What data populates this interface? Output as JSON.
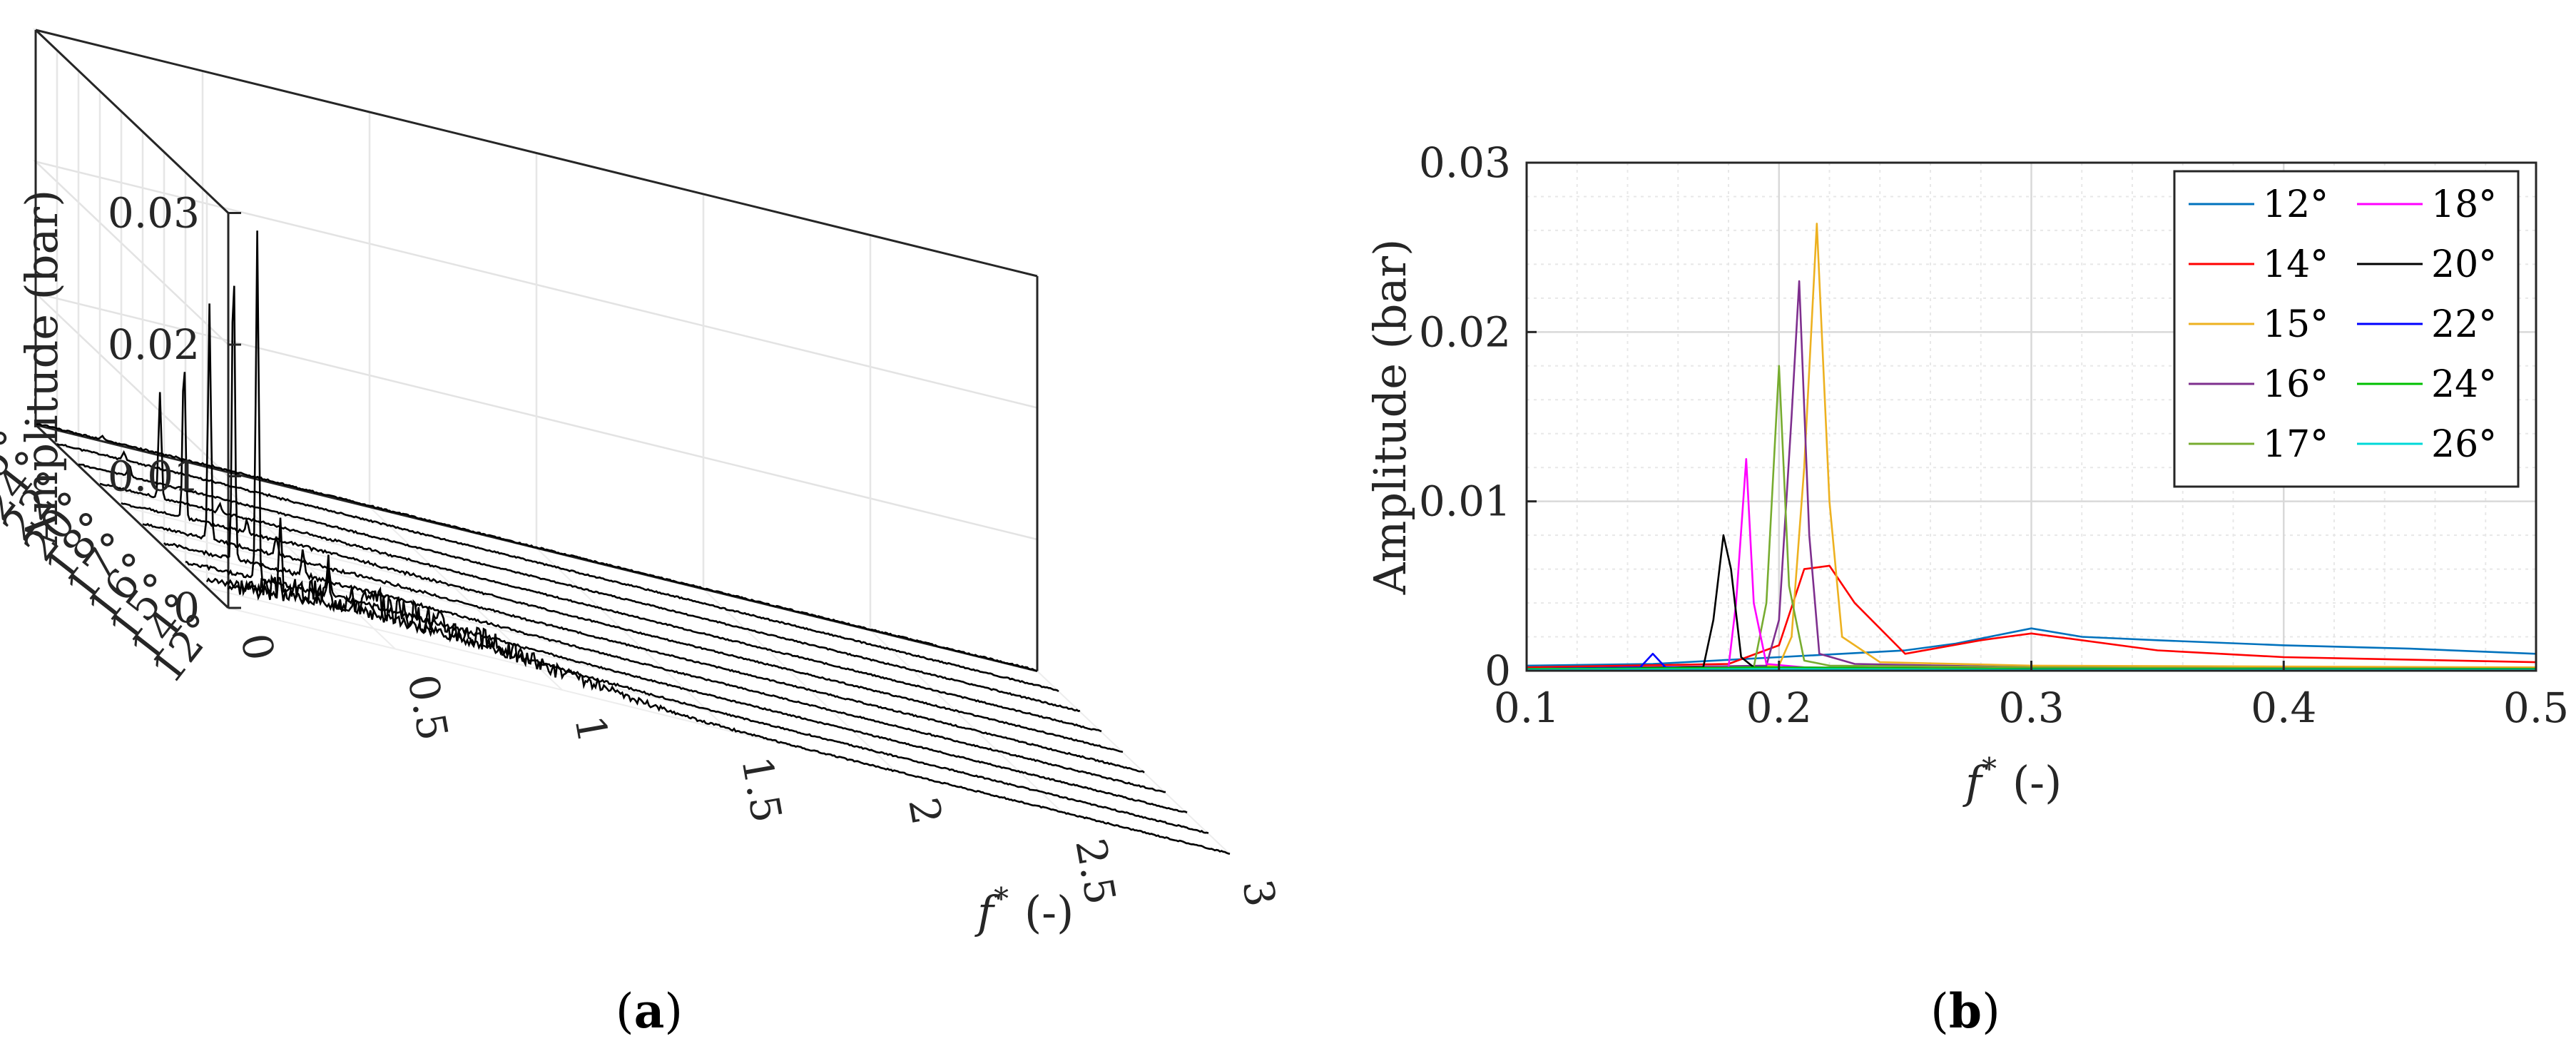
{
  "chart_data": [
    {
      "panel": "(a)",
      "type": "line",
      "projection": "3d-waterfall",
      "ylabel_text": "Amplitude (bar)",
      "xlabel_f": "f",
      "xlabel_sup": "*",
      "xlabel_unit": "(-)",
      "z_ticks": [
        "0",
        "0.01",
        "0.02",
        "0.03"
      ],
      "x_ticks": [
        "0",
        "0.5",
        "1",
        "1.5",
        "2",
        "2.5",
        "3"
      ],
      "angle_ticks": [
        "12°",
        "14°",
        "15°",
        "16°",
        "17°",
        "18°",
        "20°",
        "22°",
        "24°",
        "26°"
      ],
      "x_range": [
        0,
        3
      ],
      "z_range": [
        0,
        0.03
      ],
      "grid": true,
      "line_color": "#000000",
      "series": [
        {
          "angle": "12°",
          "peak_x": 0.3,
          "peak_amp": 0.0025,
          "broadband": 0.003
        },
        {
          "angle": "14°",
          "peak_x": 0.22,
          "peak_amp": 0.006,
          "broadband": 0.001
        },
        {
          "angle": "15°",
          "peak_x": 0.215,
          "peak_amp": 0.0264,
          "broadband": 0.0005
        },
        {
          "angle": "16°",
          "peak_x": 0.208,
          "peak_amp": 0.023,
          "broadband": 0.0004
        },
        {
          "angle": "17°",
          "peak_x": 0.2,
          "peak_amp": 0.018,
          "broadband": 0.0003
        },
        {
          "angle": "18°",
          "peak_x": 0.188,
          "peak_amp": 0.0125,
          "broadband": 0.0003
        },
        {
          "angle": "20°",
          "peak_x": 0.18,
          "peak_amp": 0.008,
          "broadband": 0.0002
        },
        {
          "angle": "22°",
          "peak_x": 0.152,
          "peak_amp": 0.001,
          "broadband": 0.0001
        },
        {
          "angle": "24°",
          "peak_x": 0.2,
          "peak_amp": 0.0006,
          "broadband": 0.0001
        },
        {
          "angle": "26°",
          "peak_x": 0.2,
          "peak_amp": 0.0003,
          "broadband": 0.0001
        }
      ]
    },
    {
      "panel": "(b)",
      "type": "line",
      "ylabel_text": "Amplitude (bar)",
      "xlabel_f": "f",
      "xlabel_sup": "*",
      "xlabel_unit": "(-)",
      "xlim": [
        0.1,
        0.5
      ],
      "ylim": [
        0,
        0.03
      ],
      "x_ticks": [
        "0.1",
        "0.2",
        "0.3",
        "0.4",
        "0.5"
      ],
      "y_ticks": [
        "0",
        "0.01",
        "0.02",
        "0.03"
      ],
      "grid": true,
      "legend_placement": "top-right",
      "series": [
        {
          "name": "12°",
          "color": "#0072BD",
          "x": [
            0.1,
            0.15,
            0.2,
            0.25,
            0.27,
            0.3,
            0.32,
            0.35,
            0.4,
            0.45,
            0.5
          ],
          "y": [
            0.0003,
            0.0004,
            0.0008,
            0.0012,
            0.0016,
            0.0025,
            0.002,
            0.0018,
            0.0015,
            0.0013,
            0.001
          ]
        },
        {
          "name": "14°",
          "color": "#FF0000",
          "x": [
            0.1,
            0.18,
            0.2,
            0.21,
            0.22,
            0.23,
            0.25,
            0.28,
            0.3,
            0.35,
            0.4,
            0.5
          ],
          "y": [
            0.0002,
            0.0004,
            0.0015,
            0.006,
            0.0062,
            0.004,
            0.001,
            0.0018,
            0.0022,
            0.0012,
            0.0008,
            0.0005
          ]
        },
        {
          "name": "15°",
          "color": "#EDB120",
          "x": [
            0.1,
            0.2,
            0.205,
            0.21,
            0.215,
            0.22,
            0.225,
            0.24,
            0.3,
            0.5
          ],
          "y": [
            0.0001,
            0.0003,
            0.002,
            0.012,
            0.0264,
            0.01,
            0.002,
            0.0005,
            0.0003,
            0.0002
          ]
        },
        {
          "name": "16°",
          "color": "#7E2F8E",
          "x": [
            0.1,
            0.195,
            0.2,
            0.205,
            0.208,
            0.212,
            0.216,
            0.23,
            0.3,
            0.5
          ],
          "y": [
            0.0001,
            0.0003,
            0.003,
            0.015,
            0.023,
            0.008,
            0.001,
            0.0004,
            0.0002,
            0.0001
          ]
        },
        {
          "name": "17°",
          "color": "#77AC30",
          "x": [
            0.1,
            0.19,
            0.195,
            0.2,
            0.204,
            0.21,
            0.22,
            0.3,
            0.5
          ],
          "y": [
            0.0001,
            0.0002,
            0.004,
            0.018,
            0.005,
            0.0006,
            0.0003,
            0.0002,
            0.0001
          ]
        },
        {
          "name": "18°",
          "color": "#FF00FF",
          "x": [
            0.1,
            0.18,
            0.183,
            0.187,
            0.19,
            0.195,
            0.21,
            0.3,
            0.5
          ],
          "y": [
            0.0001,
            0.0002,
            0.004,
            0.0125,
            0.004,
            0.0004,
            0.0002,
            0.0001,
            0.0001
          ]
        },
        {
          "name": "20°",
          "color": "#000000",
          "x": [
            0.1,
            0.17,
            0.174,
            0.178,
            0.181,
            0.185,
            0.19,
            0.3,
            0.5
          ],
          "y": [
            0.0001,
            0.0002,
            0.003,
            0.008,
            0.006,
            0.0008,
            0.0002,
            0.0001,
            0.0001
          ]
        },
        {
          "name": "22°",
          "color": "#0000FF",
          "x": [
            0.1,
            0.145,
            0.15,
            0.155,
            0.17,
            0.3,
            0.5
          ],
          "y": [
            0.0001,
            0.0002,
            0.001,
            0.0002,
            0.0001,
            0.0001,
            0.0001
          ]
        },
        {
          "name": "24°",
          "color": "#00C000",
          "x": [
            0.1,
            0.2,
            0.3,
            0.4,
            0.5
          ],
          "y": [
            0.0001,
            0.0002,
            0.0001,
            0.0001,
            0.0001
          ]
        },
        {
          "name": "26°",
          "color": "#00D8D8",
          "x": [
            0.1,
            0.2,
            0.3,
            0.4,
            0.5
          ],
          "y": [
            5e-05,
            0.0001,
            5e-05,
            5e-05,
            5e-05
          ]
        }
      ]
    }
  ]
}
